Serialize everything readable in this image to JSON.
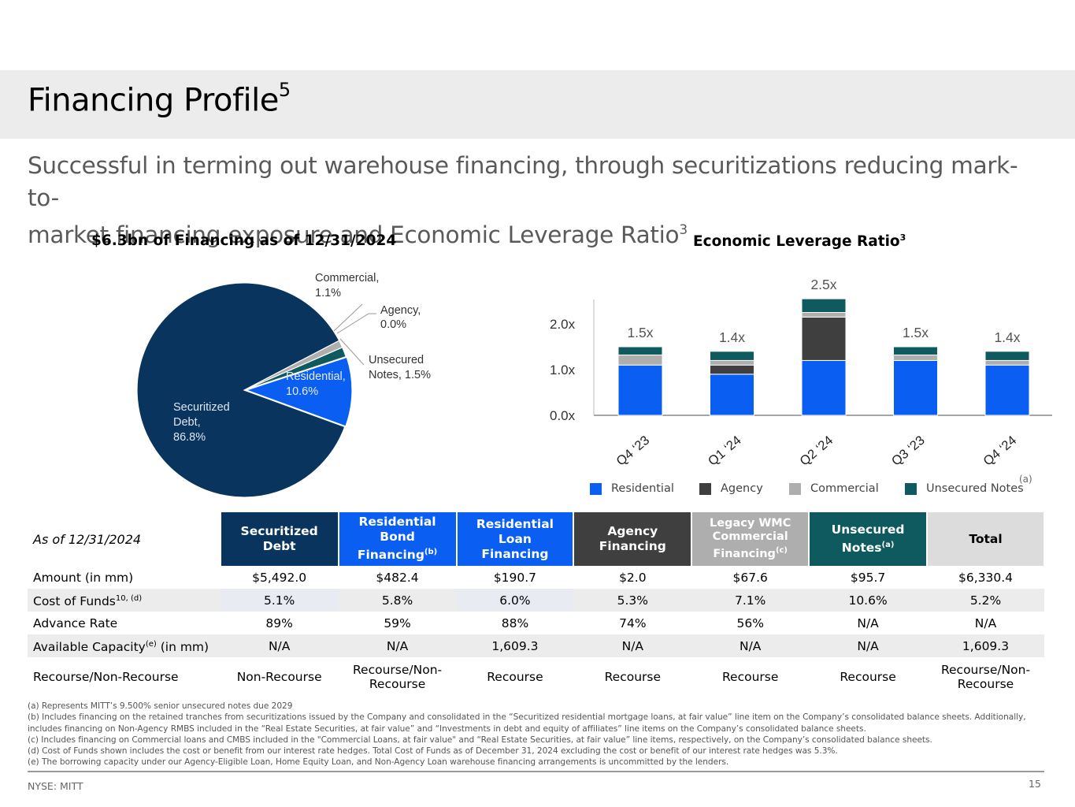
{
  "page": {
    "title": "Financing Profile",
    "title_sup": "5",
    "subtitle_line1": "Successful in terming out warehouse financing, through securitizations reducing mark-to-",
    "subtitle_line2": "market financing exposure and Economic Leverage Ratio",
    "subtitle_sup": "3"
  },
  "colors": {
    "securitized_debt": "#08345e",
    "residential": "#0a5ef2",
    "agency": "#3f3f3f",
    "commercial": "#aeaeae",
    "unsecured_notes": "#0e5a5e",
    "title_band": "#ececec"
  },
  "chart_data": [
    {
      "type": "pie",
      "title": "$6.3bn of Financing as of 12/31/2024",
      "slices": [
        {
          "name": "Securitized Debt",
          "label_line1": "Securitized",
          "label_line2": "Debt,",
          "label_line3": "86.8%",
          "value": 86.8,
          "color": "#08345e"
        },
        {
          "name": "Residential",
          "label_line1": "Residential,",
          "label_line2": "10.6%",
          "value": 10.6,
          "color": "#0a5ef2"
        },
        {
          "name": "Unsecured Notes",
          "label_line1": "Unsecured",
          "label_line2": "Notes, 1.5%",
          "value": 1.5,
          "color": "#0e5a5e"
        },
        {
          "name": "Agency",
          "label_line1": "Agency,",
          "label_line2": "0.0%",
          "value": 0.0,
          "color": "#3f3f3f"
        },
        {
          "name": "Commercial",
          "label_line1": "Commercial,",
          "label_line2": "1.1%",
          "value": 1.1,
          "color": "#aeaeae"
        }
      ]
    },
    {
      "type": "bar",
      "stacked": true,
      "title": "Economic Leverage Ratio",
      "title_sup": "3",
      "categories": [
        "Q4 ‘23",
        "Q1 ‘24",
        "Q2 ‘24",
        "Q3 ‘23",
        "Q4 ‘24"
      ],
      "totals": [
        "1.5x",
        "1.4x",
        "2.5x",
        "1.5x",
        "1.4x"
      ],
      "series": [
        {
          "name": "Residential",
          "values": [
            1.1,
            0.9,
            1.2,
            1.2,
            1.1
          ],
          "color": "#0a5ef2"
        },
        {
          "name": "Agency",
          "values": [
            0.0,
            0.2,
            0.95,
            0.0,
            0.0
          ],
          "color": "#3f3f3f"
        },
        {
          "name": "Commercial",
          "values": [
            0.22,
            0.1,
            0.1,
            0.12,
            0.1
          ],
          "color": "#aeaeae"
        },
        {
          "name": "Unsecured Notes",
          "values": [
            0.18,
            0.2,
            0.3,
            0.18,
            0.2
          ],
          "color": "#0e5a5e"
        }
      ],
      "y_ticks": [
        "0.0x",
        "1.0x",
        "2.0x"
      ],
      "ylim": [
        0,
        2.5
      ],
      "legend_position": "bottom",
      "legend_note": "(a)"
    }
  ],
  "table": {
    "as_of": "As of 12/31/2024",
    "headers": [
      {
        "l1": "Securitized Debt",
        "l2": "",
        "sup": "",
        "color": "#08345e"
      },
      {
        "l1": "Residential Bond",
        "l2": "Financing",
        "sup": "(b)",
        "color": "#0a5ef2"
      },
      {
        "l1": "Residential Loan",
        "l2": "Financing",
        "sup": "",
        "color": "#0a5ef2"
      },
      {
        "l1": "Agency Financing",
        "l2": "",
        "sup": "",
        "color": "#3f3f3f"
      },
      {
        "l1": "Legacy WMC",
        "l2": "Commercial",
        "l3": "Financing",
        "sup": "(c)",
        "color": "#aeaeae"
      },
      {
        "l1": "Unsecured",
        "l2": "Notes",
        "sup": "(a)",
        "color": "#0e5a5e"
      },
      {
        "l1": "Total",
        "l2": "",
        "sup": "",
        "color": "#dcdcdc"
      }
    ],
    "rows": [
      {
        "label": "Amount (in mm)",
        "label_sup": "",
        "label_suffix": "",
        "cells": [
          "$5,492.0",
          "$482.4",
          "$190.7",
          "$2.0",
          "$67.6",
          "$95.7",
          "$6,330.4"
        ]
      },
      {
        "label": "Cost of Funds",
        "label_sup": "10, (d)",
        "label_suffix": "",
        "cells": [
          "5.1%",
          "5.8%",
          "6.0%",
          "5.3%",
          "7.1%",
          "10.6%",
          "5.2%"
        ]
      },
      {
        "label": "Advance Rate",
        "label_sup": "",
        "label_suffix": "",
        "cells": [
          "89%",
          "59%",
          "88%",
          "74%",
          "56%",
          "N/A",
          "N/A"
        ]
      },
      {
        "label": "Available Capacity",
        "label_sup": "(e)",
        "label_suffix": " (in mm)",
        "cells": [
          "N/A",
          "N/A",
          "1,609.3",
          "N/A",
          "N/A",
          "N/A",
          "1,609.3"
        ]
      },
      {
        "label": "Recourse/Non-Recourse",
        "label_sup": "",
        "label_suffix": "",
        "cells": [
          "Non-Recourse",
          "Recourse/Non-Recourse",
          "Recourse",
          "Recourse",
          "Recourse",
          "Recourse",
          "Recourse/Non-Recourse"
        ]
      }
    ]
  },
  "footnotes": [
    "(a) Represents MITT’s 9.500% senior unsecured notes due 2029",
    "(b) Includes financing on the retained tranches from securitizations issued by the Company and consolidated in the “Securitized residential mortgage loans, at fair value” line item on the Company’s consolidated balance sheets. Additionally, includes financing on Non-Agency RMBS included in the “Real Estate Securities, at fair value” and “Investments in debt and equity of affiliates” line items on the Company’s consolidated balance sheets.",
    "(c) Includes financing on Commercial loans and CMBS included in the \"Commercial Loans, at fair value\" and “Real Estate Securities, at fair value” line items, respectively, on the Company’s consolidated balance sheets.",
    "(d) Cost of Funds shown includes the cost or benefit from our interest rate hedges. Total Cost of Funds as of December 31, 2024 excluding the cost or benefit of our interest rate hedges was 5.3%.",
    "(e) The borrowing capacity under our  Agency-Eligible Loan, Home Equity Loan, and Non-Agency Loan warehouse financing arrangements is uncommitted by the lenders."
  ],
  "footer": {
    "ticker": "NYSE: MITT",
    "page_number": "15"
  }
}
